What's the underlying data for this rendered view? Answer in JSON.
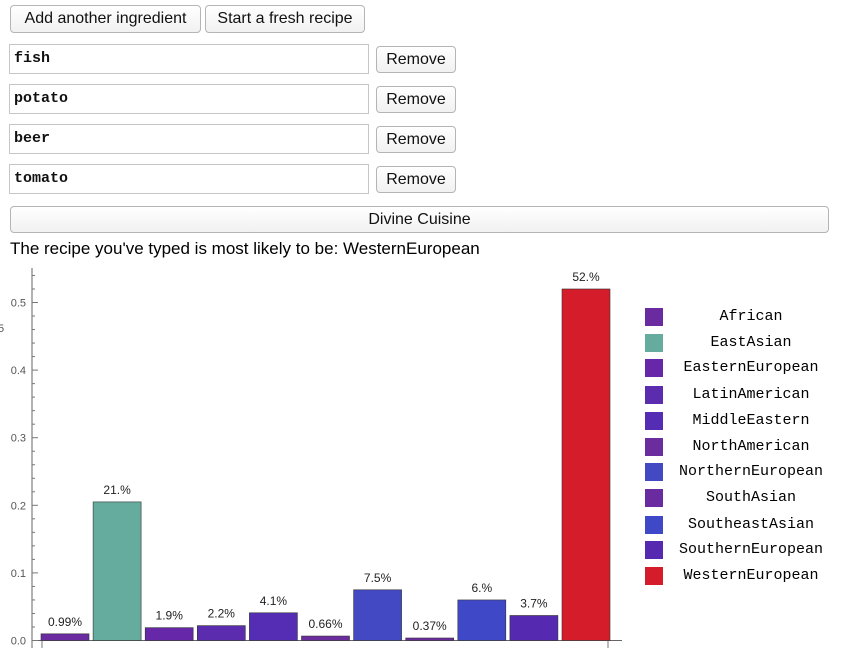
{
  "toolbar": {
    "add_label": "Add another ingredient",
    "fresh_label": "Start a fresh recipe"
  },
  "ingredients": [
    {
      "value": "fish",
      "remove_label": "Remove"
    },
    {
      "value": "potato",
      "remove_label": "Remove"
    },
    {
      "value": "beer",
      "remove_label": "Remove"
    },
    {
      "value": "tomato",
      "remove_label": "Remove"
    }
  ],
  "divine_label": "Divine Cuisine",
  "result_text": "The recipe you've typed is most likely to be: WesternEuropean",
  "chart_data": {
    "type": "bar",
    "categories": [
      "African",
      "EastAsian",
      "EasternEuropean",
      "LatinAmerican",
      "MiddleEastern",
      "NorthAmerican",
      "NorthernEuropean",
      "SouthAsian",
      "SoutheastAsian",
      "SouthernEuropean",
      "WesternEuropean"
    ],
    "values": [
      0.0099,
      0.205,
      0.019,
      0.022,
      0.041,
      0.0066,
      0.075,
      0.0037,
      0.06,
      0.037,
      0.52
    ],
    "data_labels": [
      "0.99%",
      "21.%",
      "1.9%",
      "2.2%",
      "4.1%",
      "0.66%",
      "7.5%",
      "0.37%",
      "6.%",
      "3.7%",
      "52.%"
    ],
    "colors": [
      "#6a2aa0",
      "#65ab9e",
      "#6627a8",
      "#5b2cae",
      "#552db5",
      "#6b2c9e",
      "#4249c2",
      "#6a2aa0",
      "#3f49c8",
      "#5529b0",
      "#d51c2b"
    ],
    "yticks": [
      "0.0",
      "0.1",
      "0.2",
      "0.3",
      "0.4",
      "0.5"
    ],
    "ylim": [
      0,
      0.55
    ],
    "legend": "right",
    "title": "",
    "xlabel": "",
    "ylabel": ""
  }
}
